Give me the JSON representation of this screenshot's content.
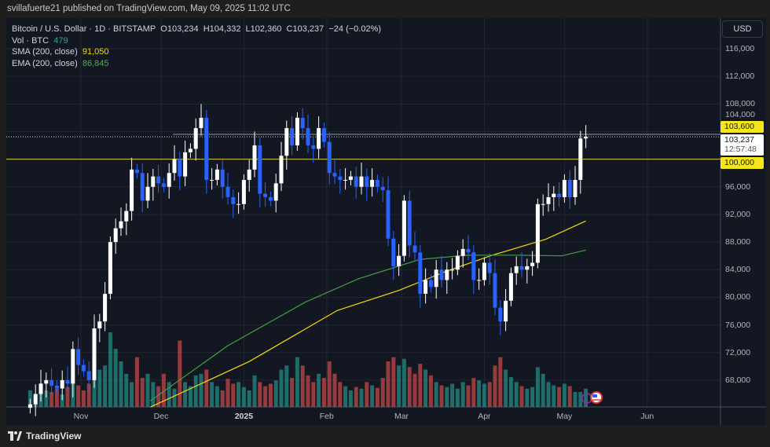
{
  "header": {
    "published": "svillafuerte21 published on TradingView.com, May 09, 2025 11:02 UTC"
  },
  "legend": {
    "symbol": "Bitcoin / U.S. Dollar · 1D · BITSTAMP",
    "ohlc": "O103,234  H104,332  L102,360  C103,237  −24 (−0.02%)",
    "vol_label": "Vol · BTC",
    "vol_value": "479",
    "sma_label": "SMA (200, close)",
    "sma_value": "91,050",
    "ema_label": "EMA (200, close)",
    "ema_value": "86,845"
  },
  "currency_button": "USD",
  "price_tags": {
    "level_high": "103,600",
    "last_price": "103,237",
    "countdown": "12:57:48",
    "level_round": "100,000"
  },
  "footer": {
    "brand": "TradingView"
  },
  "colors": {
    "up": "#ffffff",
    "down": "#2962ff",
    "vol_up": "#26a69a",
    "vol_down": "#ef5350",
    "sma": "#f5d90a",
    "ema": "#43a047",
    "level": "#d4c93a"
  },
  "chart_data": {
    "type": "candlestick",
    "ylim": [
      64000,
      118000
    ],
    "yticks": [
      68000,
      72000,
      76000,
      80000,
      84000,
      88000,
      92000,
      96000,
      100000,
      104000,
      108000,
      112000,
      116000
    ],
    "ytick_labels": [
      "68,000",
      "72,000",
      "76,000",
      "80,000",
      "84,000",
      "88,000",
      "92,000",
      "96,000",
      "100,000",
      "104,000",
      "108,000",
      "112,000",
      "116,000"
    ],
    "xticks": [
      {
        "label": "Nov",
        "date": "2024-11-01"
      },
      {
        "label": "Dec",
        "date": "2024-12-01"
      },
      {
        "label": "2025",
        "date": "2025-01-01",
        "bold": true
      },
      {
        "label": "Feb",
        "date": "2025-02-01"
      },
      {
        "label": "Mar",
        "date": "2025-03-01"
      },
      {
        "label": "Apr",
        "date": "2025-04-01"
      },
      {
        "label": "May",
        "date": "2025-05-01"
      },
      {
        "label": "Jun",
        "date": "2025-06-01"
      }
    ],
    "grid": true,
    "candle_start": "2024-10-13",
    "candle_interval_days": 2,
    "closes": [
      64500,
      66000,
      67500,
      68000,
      67200,
      66800,
      68000,
      67500,
      72500,
      70200,
      69300,
      68000,
      75500,
      76500,
      80500,
      88000,
      90000,
      91000,
      92500,
      98500,
      98000,
      94000,
      96000,
      97500,
      96500,
      96000,
      98000,
      100000,
      97500,
      101000,
      101500,
      104500,
      106000,
      97000,
      97000,
      98500,
      96000,
      94500,
      93500,
      93500,
      97000,
      98500,
      102000,
      95000,
      94500,
      94000,
      96500,
      100500,
      104500,
      102000,
      106000,
      104500,
      102000,
      101500,
      104500,
      102500,
      98000,
      97500,
      97000,
      97000,
      97500,
      96000,
      97500,
      96000,
      97000,
      96000,
      95500,
      88500,
      84500,
      86000,
      94000,
      87500,
      86500,
      80500,
      82500,
      81500,
      84000,
      82500,
      84000,
      84000,
      86000,
      87000,
      86500,
      82500,
      82500,
      85000,
      83500,
      78500,
      76500,
      79500,
      83500,
      84500,
      84000,
      84500,
      85000,
      93500,
      93500,
      94500,
      95000,
      94500,
      97000,
      94500,
      97000,
      103000,
      103237
    ],
    "volume": [
      2,
      1.5,
      2.5,
      2,
      1.8,
      2.2,
      1.5,
      2.4,
      3.5,
      2.6,
      2,
      2.8,
      4,
      4.5,
      5,
      9,
      7,
      5.5,
      4,
      3,
      6,
      3.5,
      4,
      3,
      2.5,
      4,
      3,
      2.2,
      8,
      3,
      2.5,
      3.8,
      4,
      4.5,
      3,
      2.5,
      2,
      3.4,
      2.8,
      3,
      2.4,
      2,
      3.8,
      3,
      2.5,
      2.8,
      3.2,
      4.5,
      5,
      3.5,
      6,
      5,
      3.8,
      3,
      4,
      3.5,
      5.5,
      4,
      3,
      2.5,
      2,
      2.4,
      2.2,
      3,
      2.6,
      2.3,
      3.5,
      5.5,
      6,
      5,
      5.8,
      4.8,
      4,
      5.2,
      4.5,
      3.8,
      3,
      2.6,
      2.4,
      2.8,
      2.2,
      3,
      2.6,
      3.5,
      3.2,
      2.8,
      3,
      5,
      6,
      4.5,
      3.6,
      3,
      2.5,
      2.2,
      2.4,
      4.8,
      4,
      3,
      2.6,
      2.4,
      2.8,
      2.5,
      1.8,
      1.8,
      2.2
    ],
    "lines": [
      {
        "name": "SMA (200, close)",
        "points": [
          [
            "2024-11-27",
            64100
          ],
          [
            "2025-01-03",
            70700
          ],
          [
            "2025-02-05",
            78100
          ],
          [
            "2025-02-28",
            81000
          ],
          [
            "2025-03-18",
            83800
          ],
          [
            "2025-04-04",
            86100
          ],
          [
            "2025-04-24",
            88400
          ],
          [
            "2025-05-09",
            91050
          ]
        ]
      },
      {
        "name": "EMA (200, close)",
        "points": [
          [
            "2024-11-27",
            65000
          ],
          [
            "2024-12-26",
            73000
          ],
          [
            "2025-01-24",
            79300
          ],
          [
            "2025-02-13",
            82700
          ],
          [
            "2025-03-08",
            85500
          ],
          [
            "2025-03-26",
            86100
          ],
          [
            "2025-04-14",
            86100
          ],
          [
            "2025-04-30",
            86000
          ],
          [
            "2025-05-09",
            86845
          ]
        ]
      }
    ],
    "levels": [
      {
        "value": 100000,
        "label": "100,000"
      },
      {
        "value": 103600,
        "label": "103,600"
      },
      {
        "value": 103237,
        "label": "103,237"
      }
    ]
  }
}
